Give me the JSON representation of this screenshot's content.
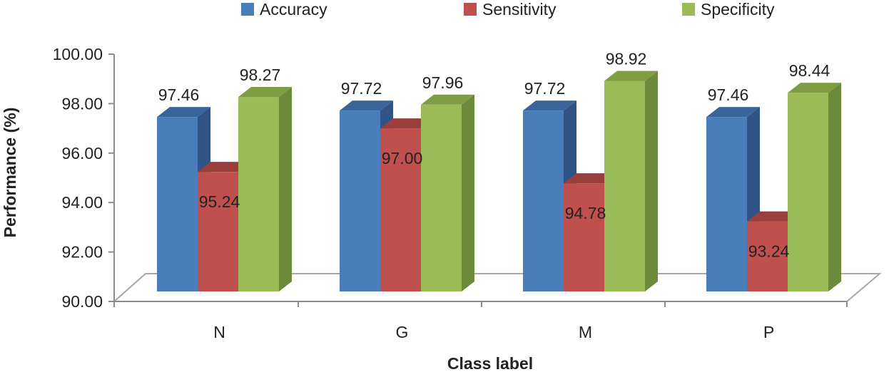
{
  "chart_data": {
    "type": "bar",
    "title": "",
    "xlabel": "Class label",
    "ylabel": "Performance (%)",
    "ylim": [
      90,
      100
    ],
    "yticks": [
      "90.00",
      "92.00",
      "94.00",
      "96.00",
      "98.00",
      "100.00"
    ],
    "categories": [
      "N",
      "G",
      "M",
      "P"
    ],
    "legend_position": "top",
    "series": [
      {
        "name": "Accuracy",
        "values": [
          97.46,
          97.72,
          97.72,
          97.46
        ],
        "labels": [
          "97.46",
          "97.72",
          "97.72",
          "97.46"
        ],
        "color": "#4a7ebb",
        "color_side": "#2f5485",
        "color_top": "#3a659a"
      },
      {
        "name": "Sensitivity",
        "values": [
          95.24,
          97.0,
          94.78,
          93.24
        ],
        "labels": [
          "95.24",
          "97.00",
          "94.78",
          "93.24"
        ],
        "color": "#c0504d",
        "color_side": "#8a3735",
        "color_top": "#9b3f3c"
      },
      {
        "name": "Specificity",
        "values": [
          98.27,
          97.96,
          98.92,
          98.44
        ],
        "labels": [
          "98.27",
          "97.96",
          "98.92",
          "98.44"
        ],
        "color": "#9bbb59",
        "color_side": "#6b8a3a",
        "color_top": "#7f9e44"
      }
    ]
  }
}
